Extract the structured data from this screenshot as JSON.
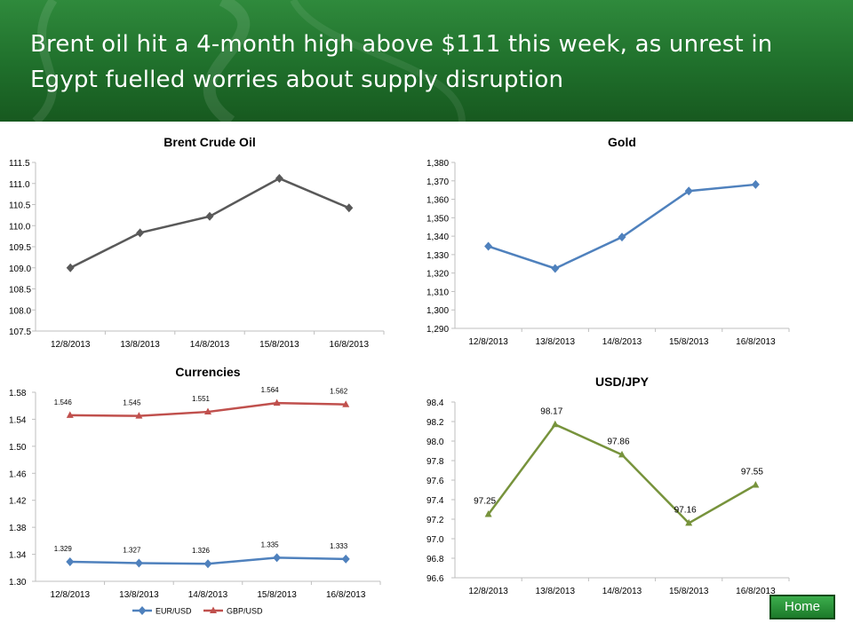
{
  "header": {
    "title": "Brent oil hit a 4-month high above $111 this week, as unrest in Egypt fuelled worries about supply disruption"
  },
  "home_button": {
    "label": "Home"
  },
  "colors": {
    "header_green": "#1f6f2b",
    "brent": "#595959",
    "gold": "#4f81bd",
    "eur_usd": "#4f81bd",
    "gbp_usd": "#c0504d",
    "usd_jpy": "#77933c"
  },
  "chart_data": [
    {
      "id": "brent",
      "type": "line",
      "title": "Brent Crude Oil",
      "categories": [
        "12/8/2013",
        "13/8/2013",
        "14/8/2013",
        "15/8/2013",
        "16/8/2013"
      ],
      "series": [
        {
          "values": [
            109.0,
            109.83,
            110.22,
            111.12,
            110.42
          ],
          "color": "#595959",
          "marker": "diamond"
        }
      ],
      "ylim": [
        107.5,
        111.5
      ],
      "yticks": [
        "107.5",
        "108.0",
        "108.5",
        "109.0",
        "109.5",
        "110.0",
        "110.5",
        "111.0",
        "111.5"
      ],
      "grid": false,
      "legend": "none"
    },
    {
      "id": "gold",
      "type": "line",
      "title": "Gold",
      "categories": [
        "12/8/2013",
        "13/8/2013",
        "14/8/2013",
        "15/8/2013",
        "16/8/2013"
      ],
      "series": [
        {
          "values": [
            1334.5,
            1322.5,
            1339.5,
            1364.5,
            1368.0
          ],
          "color": "#4f81bd",
          "marker": "diamond"
        }
      ],
      "ylim": [
        1290,
        1380
      ],
      "yticks": [
        "1,290",
        "1,300",
        "1,310",
        "1,320",
        "1,330",
        "1,340",
        "1,350",
        "1,360",
        "1,370",
        "1,380"
      ],
      "grid": false,
      "legend": "none"
    },
    {
      "id": "currencies",
      "type": "line",
      "title": "Currencies",
      "categories": [
        "12/8/2013",
        "13/8/2013",
        "14/8/2013",
        "15/8/2013",
        "16/8/2013"
      ],
      "series": [
        {
          "name": "EUR/USD",
          "values": [
            1.329,
            1.327,
            1.326,
            1.335,
            1.333
          ],
          "labels": [
            "1.329",
            "1.327",
            "1.326",
            "1.335",
            "1.333"
          ],
          "color": "#4f81bd",
          "marker": "diamond"
        },
        {
          "name": "GBP/USD",
          "values": [
            1.546,
            1.545,
            1.551,
            1.564,
            1.562
          ],
          "labels": [
            "1.546",
            "1.545",
            "1.551",
            "1.564",
            "1.562"
          ],
          "color": "#c0504d",
          "marker": "triangle"
        }
      ],
      "ylim": [
        1.3,
        1.58
      ],
      "yticks": [
        "1.30",
        "1.34",
        "1.38",
        "1.42",
        "1.46",
        "1.50",
        "1.54",
        "1.58"
      ],
      "grid": false,
      "legend": "bottom"
    },
    {
      "id": "usdjpy",
      "type": "line",
      "title": "USD/JPY",
      "categories": [
        "12/8/2013",
        "13/8/2013",
        "14/8/2013",
        "15/8/2013",
        "16/8/2013"
      ],
      "series": [
        {
          "values": [
            97.25,
            98.17,
            97.86,
            97.16,
            97.55
          ],
          "labels": [
            "97.25",
            "98.17",
            "97.86",
            "97.16",
            "97.55"
          ],
          "color": "#77933c",
          "marker": "triangle"
        }
      ],
      "ylim": [
        96.6,
        98.4
      ],
      "yticks": [
        "96.6",
        "96.8",
        "97.0",
        "97.2",
        "97.4",
        "97.6",
        "97.8",
        "98.0",
        "98.2",
        "98.4"
      ],
      "grid": false,
      "legend": "none"
    }
  ]
}
